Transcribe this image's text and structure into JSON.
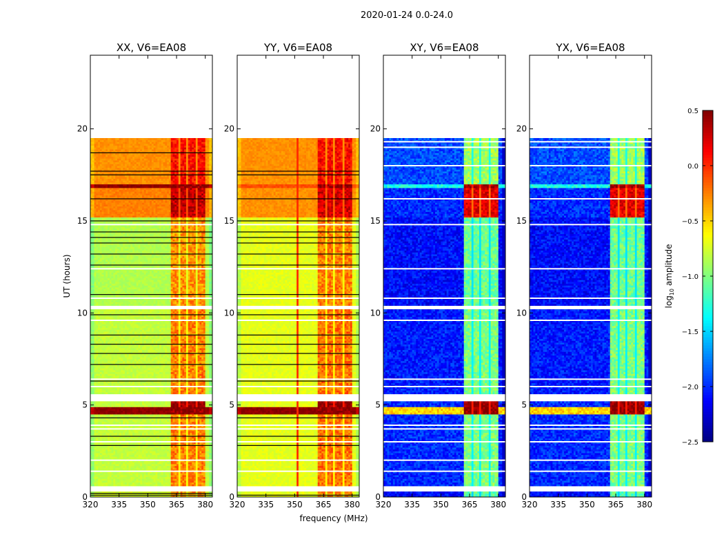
{
  "chart_data": {
    "type": "heatmap",
    "suptitle": "2020-01-24 0.0-24.0",
    "xlabel": "frequency (MHz)",
    "ylabel": "UT (hours)",
    "xlim": [
      320,
      383.7
    ],
    "ylim": [
      0,
      24
    ],
    "xticks": [
      320,
      335,
      350,
      365,
      380
    ],
    "yticks": [
      0,
      5,
      10,
      15,
      20
    ],
    "colormap": "jet",
    "colorbar": {
      "label_main": "log",
      "label_sub": "10",
      "label_rest": " amplitude",
      "range": [
        -2.5,
        0.5
      ],
      "ticks": [
        "0.5",
        "0.0",
        "−0.5",
        "−1.0",
        "−1.5",
        "−2.0",
        "−2.5"
      ],
      "tick_values": [
        0.5,
        0.0,
        -0.5,
        -1.0,
        -1.5,
        -2.0,
        -2.5
      ]
    },
    "rfi_channel_blocks_mhz": [
      [
        362.5,
        366
      ],
      [
        367,
        370.5
      ],
      [
        371.5,
        375
      ],
      [
        376.5,
        380.5
      ]
    ],
    "flagged_white_hours": [
      [
        0.3,
        0.6
      ],
      [
        5.2,
        5.6
      ],
      [
        10.2,
        10.4
      ],
      [
        19.5,
        24
      ]
    ],
    "panels": [
      {
        "title": "XX, V6=EA08",
        "segments": [
          {
            "t": [
              0,
              0.3
            ],
            "level": -0.75,
            "rfi": -0.3
          },
          {
            "t": [
              0.6,
              4.5
            ],
            "level": -0.8,
            "rfi": -0.25
          },
          {
            "t": [
              4.5,
              4.9
            ],
            "level": 0.45,
            "rfi": 0.45
          },
          {
            "t": [
              4.9,
              5.2
            ],
            "level": -0.8,
            "rfi": 0.45
          },
          {
            "t": [
              5.6,
              10.2
            ],
            "level": -0.8,
            "rfi": -0.25
          },
          {
            "t": [
              10.4,
              15.2
            ],
            "level": -0.85,
            "rfi": -0.3
          },
          {
            "t": [
              15.2,
              16.8
            ],
            "level": -0.25,
            "rfi": 0.3
          },
          {
            "t": [
              16.8,
              17.0
            ],
            "level": 0.45,
            "rfi": 0.45
          },
          {
            "t": [
              17.0,
              19.5
            ],
            "level": -0.3,
            "rfi": 0.1
          }
        ],
        "white_lines": [
          1.4,
          2.0,
          3.0,
          3.7,
          3.9,
          6.0,
          6.4,
          9.6,
          10.8,
          12.4,
          14.8
        ],
        "black_lines": [
          0.1,
          0.2,
          2.8,
          3.3,
          4.3,
          6.3,
          7.2,
          7.8,
          8.3,
          8.8,
          9.9,
          11.0,
          12.6,
          13.2,
          13.8,
          14.1,
          14.4,
          15.0,
          16.2,
          17.5,
          17.7,
          18.7
        ],
        "vline_mhz": null
      },
      {
        "title": "YY, V6=EA08",
        "segments": [
          {
            "t": [
              0,
              0.3
            ],
            "level": -0.7,
            "rfi": -0.3
          },
          {
            "t": [
              0.6,
              4.5
            ],
            "level": -0.7,
            "rfi": -0.2
          },
          {
            "t": [
              4.5,
              4.9
            ],
            "level": 0.45,
            "rfi": 0.45
          },
          {
            "t": [
              4.9,
              5.2
            ],
            "level": -0.7,
            "rfi": 0.45
          },
          {
            "t": [
              5.6,
              10.2
            ],
            "level": -0.7,
            "rfi": -0.2
          },
          {
            "t": [
              10.4,
              15.2
            ],
            "level": -0.7,
            "rfi": -0.25
          },
          {
            "t": [
              15.2,
              16.8
            ],
            "level": -0.3,
            "rfi": 0.25
          },
          {
            "t": [
              16.8,
              17.0
            ],
            "level": -0.1,
            "rfi": 0.45
          },
          {
            "t": [
              17.0,
              19.5
            ],
            "level": -0.3,
            "rfi": 0.1
          }
        ],
        "white_lines": [
          1.4,
          2.0,
          3.0,
          3.7,
          3.9,
          6.0,
          6.4,
          9.6,
          10.8,
          12.4,
          14.8
        ],
        "black_lines": [
          0.1,
          2.8,
          3.3,
          4.3,
          6.3,
          7.2,
          7.8,
          8.3,
          8.8,
          9.9,
          11.0,
          12.6,
          13.2,
          13.8,
          14.1,
          14.4,
          15.0,
          16.2,
          17.5,
          17.7
        ],
        "vline_mhz": 351
      },
      {
        "title": "XY, V6=EA08",
        "segments": [
          {
            "t": [
              0,
              0.3
            ],
            "level": -2.1,
            "rfi": -1.1
          },
          {
            "t": [
              0.6,
              4.5
            ],
            "level": -2.0,
            "rfi": -1.0
          },
          {
            "t": [
              4.5,
              4.9
            ],
            "level": -0.5,
            "rfi": 0.45
          },
          {
            "t": [
              4.9,
              5.2
            ],
            "level": -2.0,
            "rfi": 0.45
          },
          {
            "t": [
              5.6,
              10.2
            ],
            "level": -2.05,
            "rfi": -1.0
          },
          {
            "t": [
              10.4,
              15.2
            ],
            "level": -2.1,
            "rfi": -1.05
          },
          {
            "t": [
              15.2,
              16.8
            ],
            "level": -2.0,
            "rfi": 0.2
          },
          {
            "t": [
              16.8,
              17.0
            ],
            "level": -1.3,
            "rfi": 0.45
          },
          {
            "t": [
              17.0,
              19.5
            ],
            "level": -1.9,
            "rfi": -0.9
          }
        ],
        "white_lines": [
          1.4,
          2.0,
          3.0,
          3.7,
          3.9,
          6.0,
          6.4,
          9.6,
          10.8,
          12.4,
          14.8,
          16.2,
          18.0,
          19.0,
          19.3
        ],
        "black_lines": [],
        "vline_mhz": null
      },
      {
        "title": "YX, V6=EA08",
        "segments": [
          {
            "t": [
              0,
              0.3
            ],
            "level": -2.1,
            "rfi": -1.1
          },
          {
            "t": [
              0.6,
              4.5
            ],
            "level": -2.0,
            "rfi": -1.0
          },
          {
            "t": [
              4.5,
              4.9
            ],
            "level": -0.5,
            "rfi": 0.45
          },
          {
            "t": [
              4.9,
              5.2
            ],
            "level": -2.0,
            "rfi": 0.45
          },
          {
            "t": [
              5.6,
              10.2
            ],
            "level": -2.05,
            "rfi": -1.0
          },
          {
            "t": [
              10.4,
              15.2
            ],
            "level": -2.1,
            "rfi": -1.05
          },
          {
            "t": [
              15.2,
              16.8
            ],
            "level": -2.0,
            "rfi": 0.2
          },
          {
            "t": [
              16.8,
              17.0
            ],
            "level": -1.3,
            "rfi": 0.45
          },
          {
            "t": [
              17.0,
              19.5
            ],
            "level": -1.9,
            "rfi": -0.9
          }
        ],
        "white_lines": [
          1.4,
          2.0,
          3.0,
          3.7,
          3.9,
          6.0,
          6.4,
          9.6,
          10.8,
          12.4,
          14.8,
          16.2,
          18.0,
          19.0,
          19.3
        ],
        "black_lines": [],
        "vline_mhz": null
      }
    ]
  }
}
